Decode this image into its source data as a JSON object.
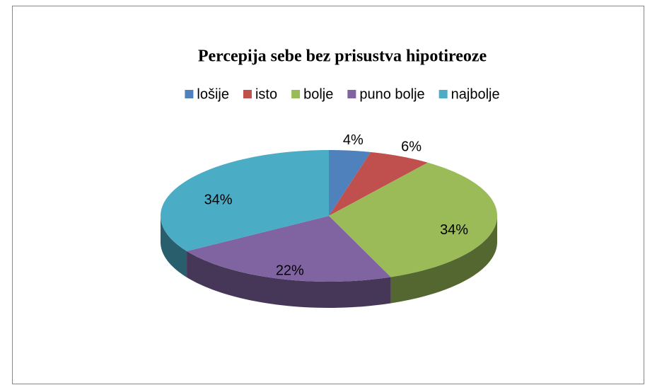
{
  "chart_data": {
    "type": "pie",
    "title": "Percepija sebe bez prisustva hipotireoze",
    "categories": [
      "lošije",
      "isto",
      "bolje",
      "puno bolje",
      "najbolje"
    ],
    "values": [
      4,
      6,
      34,
      22,
      34
    ],
    "value_labels": [
      "4%",
      "6%",
      "34%",
      "22%",
      "34%"
    ],
    "colors": [
      "#4f81bd",
      "#c0504d",
      "#9bbb59",
      "#8064a2",
      "#4bacc6"
    ],
    "legend": "top"
  }
}
